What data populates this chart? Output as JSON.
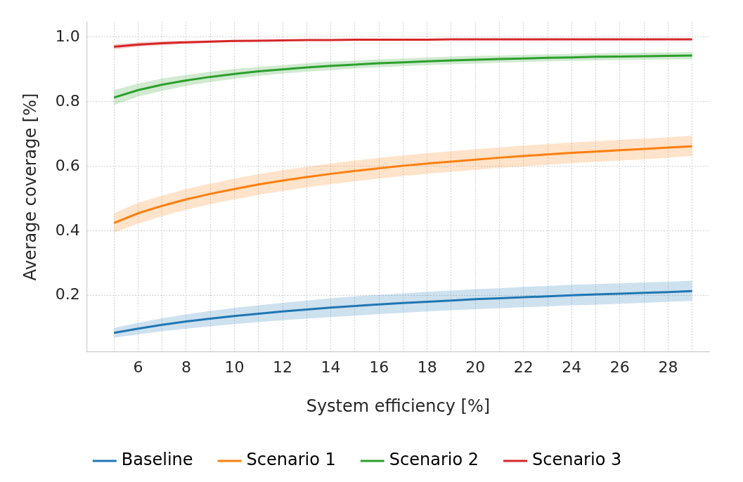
{
  "chart_data": {
    "type": "line",
    "xlabel": "System efficiency [%]",
    "ylabel": "Average coverage [%]",
    "x": [
      5,
      6,
      7,
      8,
      9,
      10,
      11,
      12,
      13,
      14,
      15,
      16,
      17,
      18,
      19,
      20,
      21,
      22,
      23,
      24,
      25,
      26,
      27,
      28,
      29
    ],
    "xlim": [
      3.88,
      29.71
    ],
    "ylim": [
      0.026,
      1.047
    ],
    "xticks": [
      {
        "value": 5,
        "label": null
      },
      6,
      {
        "value": 7,
        "label": null
      },
      8,
      {
        "value": 9,
        "label": null
      },
      10,
      {
        "value": 11,
        "label": null
      },
      12,
      {
        "value": 13,
        "label": null
      },
      14,
      {
        "value": 15,
        "label": null
      },
      16,
      {
        "value": 17,
        "label": null
      },
      18,
      {
        "value": 19,
        "label": null
      },
      20,
      {
        "value": 21,
        "label": null
      },
      22,
      {
        "value": 23,
        "label": null
      },
      24,
      {
        "value": 25,
        "label": null
      },
      26,
      {
        "value": 27,
        "label": null
      },
      28,
      {
        "value": 29,
        "label": null
      }
    ],
    "yticks": [
      0.2,
      0.4,
      0.6,
      0.8,
      {
        "value": 1,
        "label": "1.0"
      }
    ],
    "grid": true,
    "legend": "bottom",
    "line_style": "solid",
    "marker": "none",
    "series": [
      {
        "name": "Baseline",
        "color": "#1f77b4",
        "values": [
          0.085,
          0.098,
          0.11,
          0.12,
          0.129,
          0.137,
          0.144,
          0.151,
          0.157,
          0.163,
          0.168,
          0.173,
          0.177,
          0.181,
          0.185,
          0.189,
          0.192,
          0.195,
          0.198,
          0.201,
          0.204,
          0.206,
          0.209,
          0.211,
          0.214
        ],
        "lower": [
          0.07,
          0.08,
          0.09,
          0.098,
          0.105,
          0.112,
          0.118,
          0.124,
          0.129,
          0.134,
          0.138,
          0.143,
          0.147,
          0.151,
          0.155,
          0.158,
          0.161,
          0.164,
          0.167,
          0.17,
          0.172,
          0.175,
          0.178,
          0.181,
          0.184
        ],
        "upper": [
          0.1,
          0.116,
          0.13,
          0.142,
          0.153,
          0.162,
          0.17,
          0.178,
          0.185,
          0.192,
          0.198,
          0.203,
          0.207,
          0.212,
          0.216,
          0.22,
          0.223,
          0.227,
          0.23,
          0.234,
          0.236,
          0.238,
          0.241,
          0.243,
          0.246
        ]
      },
      {
        "name": "Scenario 1",
        "color": "#ff7f0e",
        "values": [
          0.425,
          0.455,
          0.478,
          0.498,
          0.515,
          0.53,
          0.544,
          0.556,
          0.567,
          0.577,
          0.586,
          0.594,
          0.602,
          0.609,
          0.615,
          0.621,
          0.627,
          0.632,
          0.637,
          0.642,
          0.646,
          0.65,
          0.654,
          0.658,
          0.662
        ],
        "lower": [
          0.395,
          0.423,
          0.446,
          0.466,
          0.483,
          0.498,
          0.512,
          0.524,
          0.535,
          0.545,
          0.554,
          0.562,
          0.57,
          0.577,
          0.583,
          0.589,
          0.595,
          0.6,
          0.605,
          0.61,
          0.614,
          0.618,
          0.622,
          0.627,
          0.632
        ],
        "upper": [
          0.455,
          0.487,
          0.51,
          0.53,
          0.547,
          0.562,
          0.576,
          0.588,
          0.599,
          0.609,
          0.618,
          0.626,
          0.634,
          0.641,
          0.647,
          0.653,
          0.659,
          0.664,
          0.669,
          0.674,
          0.678,
          0.682,
          0.686,
          0.69,
          0.695
        ]
      },
      {
        "name": "Scenario 2",
        "color": "#2ca02c",
        "values": [
          0.813,
          0.836,
          0.853,
          0.866,
          0.877,
          0.886,
          0.894,
          0.9,
          0.906,
          0.911,
          0.915,
          0.919,
          0.922,
          0.925,
          0.928,
          0.93,
          0.932,
          0.934,
          0.936,
          0.937,
          0.939,
          0.94,
          0.941,
          0.942,
          0.943
        ],
        "lower": [
          0.79,
          0.816,
          0.834,
          0.849,
          0.861,
          0.871,
          0.88,
          0.887,
          0.893,
          0.898,
          0.903,
          0.907,
          0.91,
          0.913,
          0.916,
          0.918,
          0.921,
          0.923,
          0.925,
          0.926,
          0.928,
          0.929,
          0.93,
          0.931,
          0.932
        ],
        "upper": [
          0.836,
          0.856,
          0.872,
          0.883,
          0.893,
          0.901,
          0.908,
          0.913,
          0.919,
          0.924,
          0.927,
          0.931,
          0.934,
          0.937,
          0.94,
          0.942,
          0.943,
          0.945,
          0.947,
          0.948,
          0.95,
          0.951,
          0.952,
          0.953,
          0.954
        ]
      },
      {
        "name": "Scenario 3",
        "color": "#d62728",
        "values": [
          0.97,
          0.977,
          0.981,
          0.984,
          0.986,
          0.988,
          0.989,
          0.99,
          0.991,
          0.991,
          0.992,
          0.992,
          0.992,
          0.992,
          0.993,
          0.993,
          0.993,
          0.993,
          0.993,
          0.993,
          0.993,
          0.993,
          0.993,
          0.993,
          0.993
        ],
        "lower": [
          0.962,
          0.97,
          0.975,
          0.979,
          0.982,
          0.985,
          0.986,
          0.988,
          0.989,
          0.989,
          0.99,
          0.99,
          0.991,
          0.991,
          0.991,
          0.992,
          0.992,
          0.992,
          0.992,
          0.992,
          0.992,
          0.992,
          0.992,
          0.992,
          0.992
        ],
        "upper": [
          0.978,
          0.984,
          0.987,
          0.989,
          0.99,
          0.991,
          0.992,
          0.992,
          0.993,
          0.993,
          0.994,
          0.994,
          0.994,
          0.994,
          0.995,
          0.995,
          0.995,
          0.995,
          0.995,
          0.995,
          0.995,
          0.995,
          0.995,
          0.995,
          0.995
        ]
      }
    ]
  }
}
